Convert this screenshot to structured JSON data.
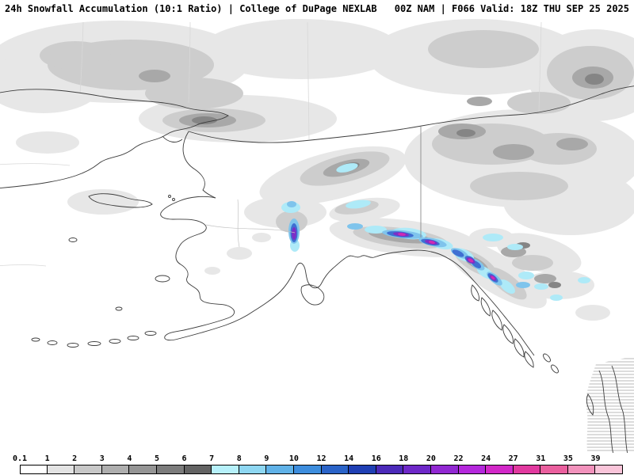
{
  "header": {
    "left_title": "24h Snowfall Accumulation (10:1 Ratio) | College of DuPage NEXLAB",
    "right_title": "00Z NAM | F066 Valid: 18Z THU SEP 25 2025"
  },
  "legend": {
    "ticks": [
      "0.1",
      "1",
      "2",
      "3",
      "4",
      "5",
      "6",
      "7",
      "8",
      "9",
      "10",
      "12",
      "14",
      "16",
      "18",
      "20",
      "22",
      "24",
      "27",
      "31",
      "35",
      "39"
    ],
    "colors": [
      "#ffffff",
      "#e3e3e3",
      "#c8c8c8",
      "#aeaeae",
      "#959595",
      "#7c7c7c",
      "#636363",
      "#b6f0fa",
      "#8ed7f2",
      "#60b2e8",
      "#3d8ddd",
      "#2a63c8",
      "#1f3fb4",
      "#4b2ab9",
      "#6e28c8",
      "#9128d2",
      "#b428dc",
      "#d228c8",
      "#e1399f",
      "#ea5f9e",
      "#f292bc",
      "#f9c4d9"
    ]
  },
  "map_colors": {
    "background": "#ffffff",
    "coastline": "#3c3c3c",
    "political_border": "#8a8a8a",
    "grid_line": "#d8d8d8",
    "shade_light": "#e7e7e7",
    "shade_medium": "#cdcdcd",
    "shade_dark": "#a8a8a8",
    "shade_darker": "#858585",
    "shade_darkest": "#616161"
  }
}
